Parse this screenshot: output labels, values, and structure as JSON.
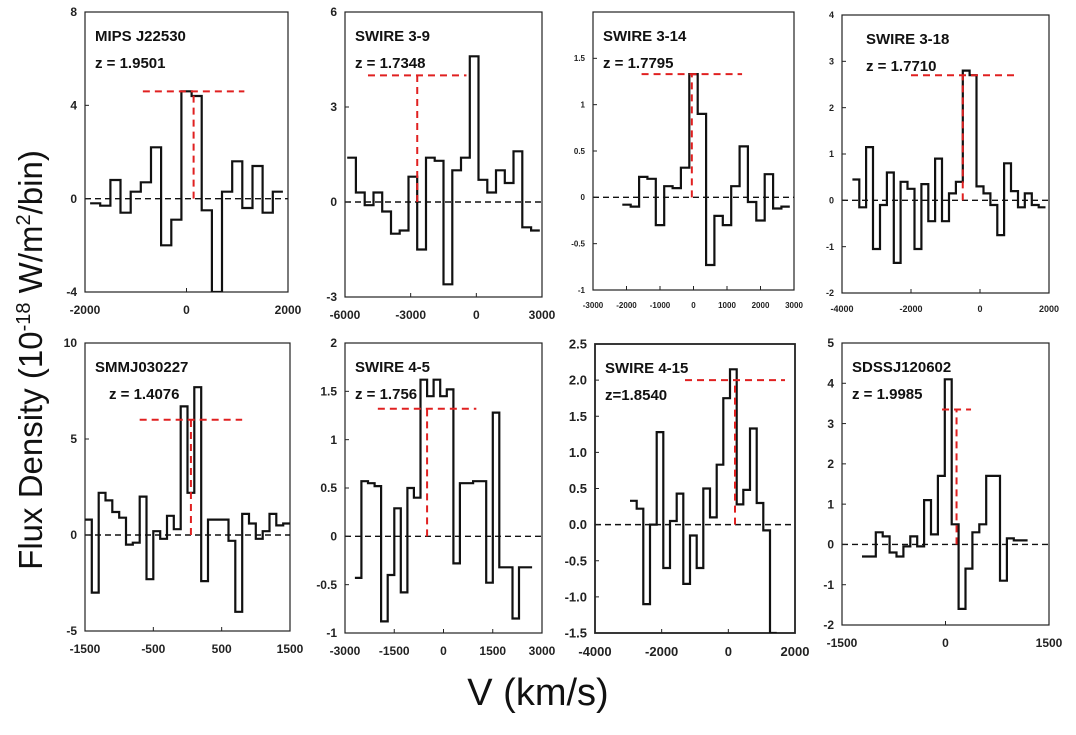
{
  "figure": {
    "ylabel_prefix": "Flux Density (10",
    "ylabel_exp": "-18",
    "ylabel_mid": " W/m",
    "ylabel_exp2": "2",
    "ylabel_suffix": "/bin)",
    "xlabel": "V (km/s)"
  },
  "chart_data": [
    {
      "type": "line",
      "title": "MIPS J22530",
      "subtitle": "z = 1.9501",
      "xlim": [
        -2000,
        2000
      ],
      "ylim": [
        -4,
        8
      ],
      "xticks": [
        "-2000",
        "0",
        "2000"
      ],
      "yticks": [
        "8",
        "4",
        "0",
        "-4"
      ],
      "series": [
        {
          "name": "spectrum",
          "style": "step",
          "x": [
            -1800,
            -1600,
            -1400,
            -1200,
            -1000,
            -800,
            -600,
            -400,
            -200,
            0,
            200,
            400,
            600,
            800,
            1000,
            1200,
            1400,
            1600,
            1800
          ],
          "y": [
            -0.2,
            -0.3,
            0.8,
            -0.6,
            0.3,
            0.7,
            2.2,
            -2.0,
            -0.9,
            4.6,
            4.4,
            -0.5,
            -4.0,
            0.3,
            1.6,
            -0.4,
            1.4,
            -0.6,
            0.3
          ]
        }
      ],
      "peak_marker": {
        "x": 140,
        "y": 4.6
      },
      "zero_line": true
    },
    {
      "type": "line",
      "title": "SWIRE 3-9",
      "subtitle": "z = 1.7348",
      "xlim": [
        -6000,
        3000
      ],
      "ylim": [
        -3,
        6
      ],
      "xticks": [
        "-6000",
        "-3000",
        "0",
        "3000"
      ],
      "yticks": [
        "6",
        "3",
        "0",
        "-3"
      ],
      "series": [
        {
          "name": "spectrum",
          "style": "step",
          "x": [
            -5700,
            -5300,
            -4900,
            -4500,
            -4100,
            -3700,
            -3300,
            -2900,
            -2500,
            -2100,
            -1700,
            -1300,
            -900,
            -500,
            -100,
            300,
            700,
            1100,
            1500,
            1900,
            2300,
            2700
          ],
          "y": [
            1.4,
            0.3,
            -0.1,
            0.3,
            -0.3,
            -1.0,
            -0.9,
            0.8,
            -1.5,
            1.4,
            1.3,
            -2.6,
            1.0,
            1.4,
            4.6,
            0.7,
            0.3,
            1.0,
            0.6,
            1.6,
            -0.8,
            -0.9
          ]
        }
      ],
      "peak_marker": {
        "x": -2700,
        "y": 4.0
      },
      "zero_line": true
    },
    {
      "type": "line",
      "title": "SWIRE 3-14",
      "subtitle": "z = 1.7795",
      "xlim": [
        -3000,
        3000
      ],
      "ylim": [
        -1,
        2
      ],
      "xticks": [
        "-3000",
        "-2000",
        "-1000",
        "0",
        "1000",
        "2000",
        "3000"
      ],
      "yticks": [
        "1.5",
        "1",
        "0.5",
        "0",
        "-0.5",
        "-1"
      ],
      "series": [
        {
          "name": "spectrum",
          "style": "step",
          "x": [
            -2000,
            -1750,
            -1500,
            -1250,
            -1000,
            -750,
            -500,
            -250,
            0,
            250,
            500,
            750,
            1000,
            1250,
            1500,
            1750,
            2000,
            2250,
            2500,
            2750
          ],
          "y": [
            -0.08,
            -0.1,
            0.22,
            0.2,
            -0.3,
            0.12,
            0.1,
            0.32,
            1.33,
            0.9,
            -0.73,
            -0.2,
            -0.3,
            0.12,
            0.55,
            -0.05,
            -0.25,
            0.25,
            -0.12,
            -0.1
          ]
        }
      ],
      "peak_marker": {
        "x": -50,
        "y": 1.33
      },
      "zero_line": true
    },
    {
      "type": "line",
      "title": "SWIRE 3-18",
      "subtitle": "z = 1.7710",
      "xlim": [
        -4000,
        2000
      ],
      "ylim": [
        -2,
        4
      ],
      "xticks": [
        "-4000",
        "-2000",
        "0",
        "2000"
      ],
      "yticks": [
        "4",
        "3",
        "2",
        "1",
        "0",
        "-1",
        "-2"
      ],
      "series": [
        {
          "name": "spectrum",
          "style": "step",
          "x": [
            -3600,
            -3400,
            -3200,
            -3000,
            -2800,
            -2600,
            -2400,
            -2200,
            -2000,
            -1800,
            -1600,
            -1400,
            -1200,
            -1000,
            -800,
            -600,
            -400,
            -200,
            0,
            200,
            400,
            600,
            800,
            1000,
            1200,
            1400,
            1600,
            1800
          ],
          "y": [
            0.45,
            -0.15,
            1.15,
            -1.05,
            -0.1,
            0.6,
            -1.35,
            0.4,
            0.25,
            -1.05,
            0.35,
            -0.45,
            0.9,
            -0.45,
            0.15,
            0.4,
            2.8,
            2.7,
            0.3,
            0.15,
            -0.1,
            -0.75,
            0.8,
            0.2,
            -0.15,
            0.15,
            -0.1,
            -0.15
          ]
        }
      ],
      "peak_marker": {
        "x": -500,
        "y": 2.7
      },
      "zero_line": true
    },
    {
      "type": "line",
      "title": "SMMJ030227",
      "subtitle": "z = 1.4076",
      "xlim": [
        -1500,
        1500
      ],
      "ylim": [
        -5,
        10
      ],
      "xticks": [
        "-1500",
        "-500",
        "500",
        "1500"
      ],
      "yticks": [
        "10",
        "5",
        "0",
        "-5"
      ],
      "series": [
        {
          "name": "spectrum",
          "style": "step",
          "x": [
            -1450,
            -1350,
            -1250,
            -1150,
            -1050,
            -950,
            -850,
            -750,
            -650,
            -550,
            -450,
            -350,
            -250,
            -150,
            -50,
            50,
            150,
            250,
            350,
            450,
            550,
            650,
            750,
            850,
            950,
            1050,
            1150,
            1250,
            1350,
            1450
          ],
          "y": [
            0.8,
            -3.0,
            2.2,
            1.8,
            1.2,
            0.9,
            -0.5,
            -0.4,
            2.0,
            -2.3,
            0.2,
            -0.2,
            1.0,
            0.3,
            6.7,
            2.2,
            7.7,
            -2.4,
            0.8,
            0.8,
            0.8,
            -0.3,
            -4.0,
            1.1,
            0.6,
            -0.2,
            0.2,
            1.1,
            0.5,
            0.6
          ]
        }
      ],
      "peak_marker": {
        "x": 50,
        "y": 6.0
      },
      "zero_line": true
    },
    {
      "type": "line",
      "title": "SWIRE 4-5",
      "subtitle": "z = 1.756",
      "xlim": [
        -3000,
        3000
      ],
      "ylim": [
        -1,
        2
      ],
      "xticks": [
        "-3000",
        "-1500",
        "0",
        "1500",
        "3000"
      ],
      "yticks": [
        "2",
        "1.5",
        "1",
        "0.5",
        "0",
        "-0.5",
        "-1"
      ],
      "series": [
        {
          "name": "spectrum",
          "style": "step",
          "x": [
            -2600,
            -2400,
            -2200,
            -2000,
            -1800,
            -1600,
            -1400,
            -1200,
            -1000,
            -800,
            -600,
            -400,
            -200,
            0,
            200,
            400,
            600,
            800,
            1000,
            1200,
            1400,
            1600,
            1800,
            2000,
            2200,
            2400,
            2600
          ],
          "y": [
            -0.43,
            0.57,
            0.55,
            0.52,
            -0.88,
            -0.4,
            0.29,
            -0.58,
            0.5,
            0.4,
            1.62,
            1.45,
            1.62,
            1.45,
            1.52,
            -0.28,
            0.55,
            0.55,
            0.57,
            0.57,
            -0.48,
            1.28,
            -0.32,
            -0.32,
            -0.85,
            -0.32,
            -0.32
          ]
        }
      ],
      "peak_marker": {
        "x": -500,
        "y": 1.32
      },
      "zero_line": true
    },
    {
      "type": "line",
      "title": "SWIRE 4-15",
      "subtitle": "z=1.8540",
      "xlim": [
        -4000,
        2000
      ],
      "ylim": [
        -1.5,
        2.5
      ],
      "xticks": [
        "-4000",
        "-2000",
        "0",
        "2000"
      ],
      "yticks": [
        "2.5",
        "2.0",
        "1.5",
        "1.0",
        "0.5",
        "0.0",
        "-0.5",
        "-1.0",
        "-1.5"
      ],
      "series": [
        {
          "name": "spectrum",
          "style": "step",
          "x": [
            -2850,
            -2650,
            -2450,
            -2250,
            -2050,
            -1850,
            -1650,
            -1450,
            -1250,
            -1050,
            -850,
            -650,
            -450,
            -250,
            -50,
            150,
            350,
            550,
            750,
            950,
            1150,
            1350
          ],
          "y": [
            0.33,
            0.22,
            -1.1,
            0.0,
            1.28,
            -0.6,
            0.05,
            0.43,
            -0.82,
            -0.15,
            -0.6,
            0.5,
            0.1,
            0.83,
            1.75,
            2.15,
            0.28,
            0.48,
            1.33,
            0.3,
            -0.08,
            -1.5
          ]
        }
      ],
      "peak_marker": {
        "x": 200,
        "y": 2.0
      },
      "zero_line": true
    },
    {
      "type": "line",
      "title": "SDSSJ120602",
      "subtitle": "z = 1.9985",
      "xlim": [
        -1500,
        1500
      ],
      "ylim": [
        -2,
        5
      ],
      "xticks": [
        "-1500",
        "0",
        "1500"
      ],
      "yticks": [
        "5",
        "4",
        "3",
        "2",
        "1",
        "0",
        "-1",
        "-2"
      ],
      "series": [
        {
          "name": "spectrum",
          "style": "step",
          "x": [
            -1160,
            -1060,
            -960,
            -860,
            -760,
            -660,
            -560,
            -460,
            -360,
            -260,
            -160,
            -60,
            40,
            140,
            240,
            340,
            440,
            540,
            640,
            740,
            840,
            940,
            1040,
            1140
          ],
          "y": [
            -0.3,
            -0.3,
            0.3,
            0.2,
            -0.2,
            -0.3,
            -0.05,
            0.2,
            -0.05,
            1.1,
            0.25,
            1.7,
            4.1,
            0.5,
            -1.6,
            -0.6,
            0.3,
            0.5,
            1.7,
            1.7,
            -0.9,
            0.15,
            0.1,
            0.1
          ]
        }
      ],
      "peak_marker": {
        "x": 160,
        "y": 3.35
      },
      "zero_line": true
    }
  ]
}
